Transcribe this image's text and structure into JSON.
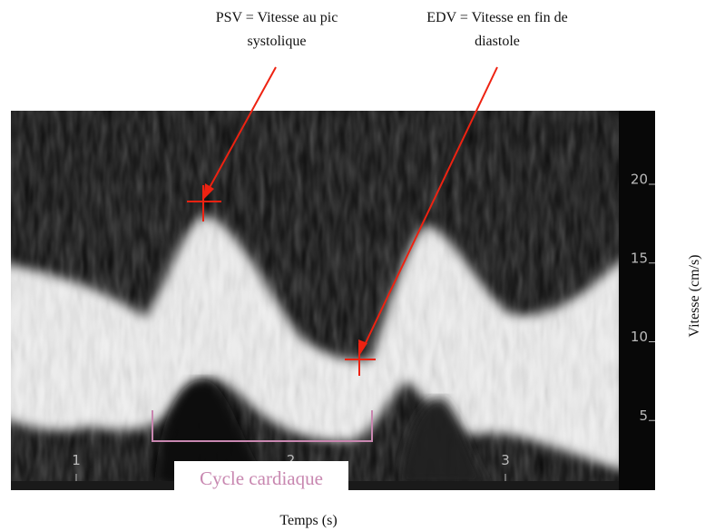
{
  "annotations": {
    "psv": [
      "PSV = Vitesse au pic",
      "systolique"
    ],
    "edv": [
      "EDV = Vitesse en fin de",
      "diastole"
    ],
    "cycle": "Cycle cardiaque"
  },
  "axes": {
    "x_label": "Temps (s)",
    "y_label": "Vitesse (cm/s)",
    "xticks": [
      1,
      2,
      3
    ],
    "yticks": [
      5,
      10,
      15,
      20
    ]
  }
}
